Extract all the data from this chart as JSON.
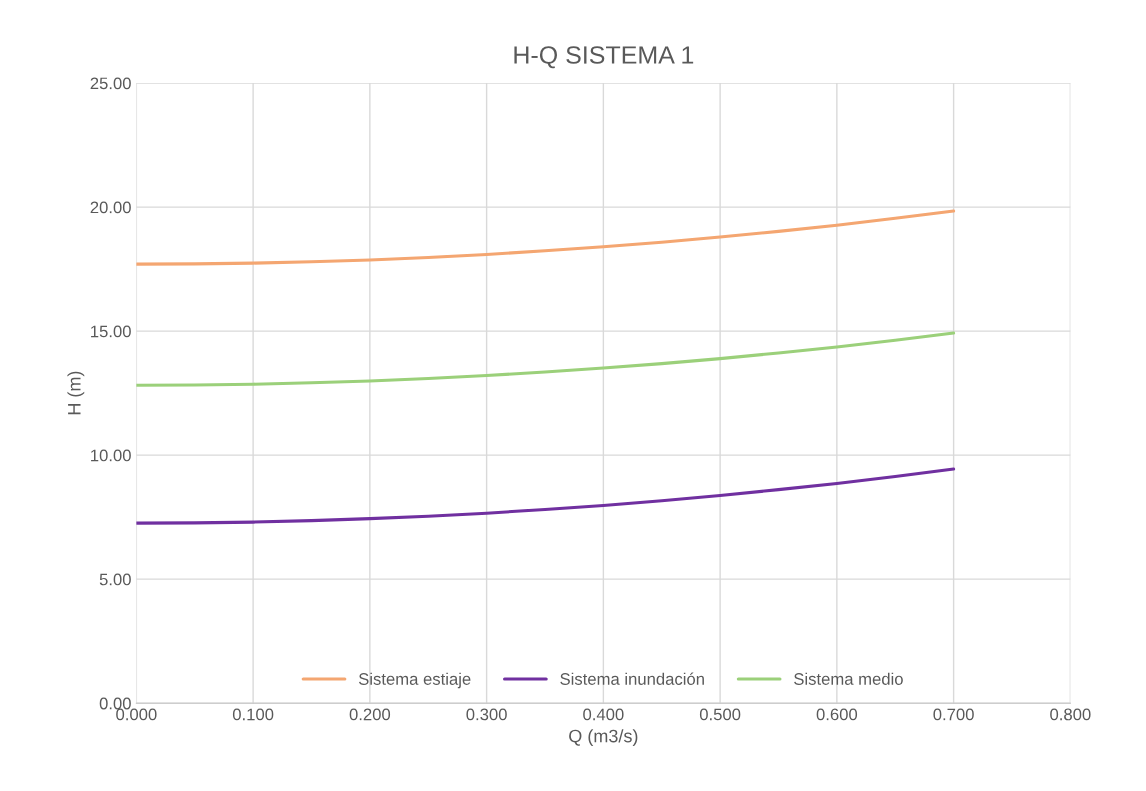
{
  "chart_data": {
    "type": "line",
    "title": "H-Q SISTEMA 1",
    "xlabel": "Q (m3/s)",
    "ylabel": "H (m)",
    "x": [
      0,
      0.05,
      0.1,
      0.15,
      0.2,
      0.25,
      0.3,
      0.35,
      0.4,
      0.45,
      0.5,
      0.55,
      0.6,
      0.65,
      0.7
    ],
    "series": [
      {
        "name": "Sistema estiaje",
        "color": "#f4a671",
        "values": [
          17.7,
          17.71,
          17.74,
          17.8,
          17.87,
          17.97,
          18.09,
          18.24,
          18.4,
          18.58,
          18.79,
          19.02,
          19.27,
          19.55,
          19.84
        ]
      },
      {
        "name": "Sistema inundación",
        "color": "#7030a0",
        "values": [
          7.26,
          7.27,
          7.3,
          7.36,
          7.44,
          7.54,
          7.66,
          7.81,
          7.97,
          8.16,
          8.37,
          8.61,
          8.86,
          9.14,
          9.44
        ]
      },
      {
        "name": "Sistema medio",
        "color": "#9bd07a",
        "values": [
          12.82,
          12.83,
          12.86,
          12.92,
          12.99,
          13.09,
          13.21,
          13.35,
          13.51,
          13.69,
          13.89,
          14.12,
          14.36,
          14.63,
          14.92
        ]
      }
    ],
    "xlim": [
      0,
      0.8
    ],
    "xticks": [
      {
        "value": 0,
        "label": "0.000"
      },
      {
        "value": 0.1,
        "label": "0.100"
      },
      {
        "value": 0.2,
        "label": "0.200"
      },
      {
        "value": 0.3,
        "label": "0.300"
      },
      {
        "value": 0.4,
        "label": "0.400"
      },
      {
        "value": 0.5,
        "label": "0.500"
      },
      {
        "value": 0.6,
        "label": "0.600"
      },
      {
        "value": 0.7,
        "label": "0.700"
      },
      {
        "value": 0.8,
        "label": "0.800"
      }
    ],
    "ylim": [
      0,
      25
    ],
    "yticks": [
      {
        "value": 0,
        "label": "0.00"
      },
      {
        "value": 5,
        "label": "5.00"
      },
      {
        "value": 10,
        "label": "10.00"
      },
      {
        "value": 15,
        "label": "15.00"
      },
      {
        "value": 20,
        "label": "20.00"
      },
      {
        "value": 25,
        "label": "25.00"
      }
    ],
    "grid": true,
    "legend": "bottom",
    "marker": "none",
    "line_style": "solid"
  }
}
